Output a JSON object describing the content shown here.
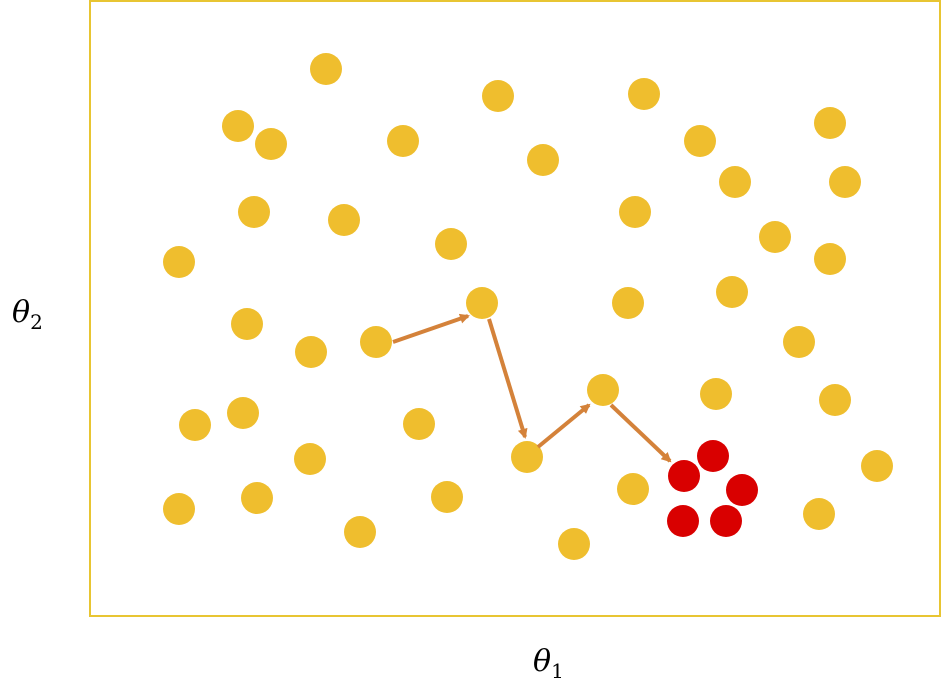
{
  "axes": {
    "x_symbol": "θ",
    "x_subscript": "1",
    "y_symbol": "θ",
    "y_subscript": "2"
  },
  "colors": {
    "frame": "#e8c532",
    "point": "#efbe2e",
    "target": "#d90000",
    "arrow": "#d4823a"
  },
  "points": [
    {
      "id": 1
    },
    {
      "id": 2
    },
    {
      "id": 3
    },
    {
      "id": 4
    },
    {
      "id": 5
    },
    {
      "id": 6
    },
    {
      "id": 7
    },
    {
      "id": 8
    },
    {
      "id": 9
    },
    {
      "id": 10
    },
    {
      "id": 11
    },
    {
      "id": 12
    },
    {
      "id": 13
    },
    {
      "id": 14
    },
    {
      "id": 15
    },
    {
      "id": 16
    },
    {
      "id": 17
    },
    {
      "id": 18
    },
    {
      "id": 19
    },
    {
      "id": 20
    },
    {
      "id": 21
    },
    {
      "id": 22
    },
    {
      "id": 23
    },
    {
      "id": 24
    },
    {
      "id": 25
    },
    {
      "id": 26
    },
    {
      "id": 27
    },
    {
      "id": 28
    },
    {
      "id": 29
    },
    {
      "id": 30
    },
    {
      "id": 31
    },
    {
      "id": 32
    },
    {
      "id": 33
    },
    {
      "id": 34
    },
    {
      "id": 35
    },
    {
      "id": 36
    },
    {
      "id": 37
    },
    {
      "id": 38
    },
    {
      "id": 39
    },
    {
      "id": 40
    },
    {
      "id": 41
    },
    {
      "id": 42
    },
    {
      "id": 43
    },
    {
      "id": 44
    }
  ],
  "target_cluster": [
    {
      "id": 1
    },
    {
      "id": 2
    },
    {
      "id": 3
    },
    {
      "id": 4
    },
    {
      "id": 5
    }
  ],
  "path_steps": [
    {
      "from": 1,
      "to": 2
    },
    {
      "from": 2,
      "to": 3
    },
    {
      "from": 3,
      "to": 4
    },
    {
      "from": 4,
      "to": "target"
    }
  ]
}
